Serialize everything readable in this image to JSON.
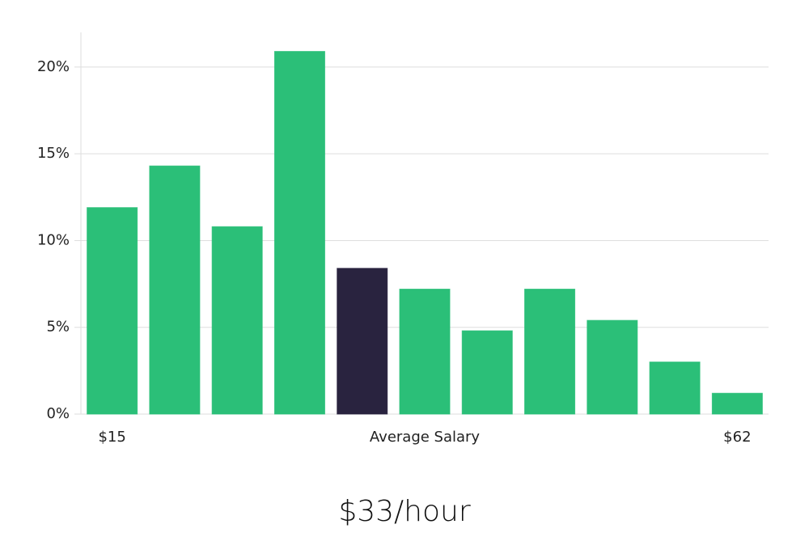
{
  "chart_data": {
    "type": "bar",
    "categories": [
      "$15",
      null,
      null,
      null,
      null,
      null,
      null,
      null,
      null,
      null,
      "$62"
    ],
    "x_label": "Average Salary",
    "values": [
      11.9,
      14.3,
      10.8,
      20.9,
      8.4,
      7.2,
      4.8,
      7.2,
      5.4,
      3.0,
      1.2
    ],
    "colors": [
      "#2bbf78",
      "#2bbf78",
      "#2bbf78",
      "#2bbf78",
      "#29233f",
      "#2bbf78",
      "#2bbf78",
      "#2bbf78",
      "#2bbf78",
      "#2bbf78",
      "#2bbf78"
    ],
    "ylim": [
      0,
      22
    ],
    "yticks": [
      {
        "value": 0,
        "label": "0%"
      },
      {
        "value": 5,
        "label": "5%"
      },
      {
        "value": 10,
        "label": "10%"
      },
      {
        "value": 15,
        "label": "15%"
      },
      {
        "value": 20,
        "label": "20%"
      }
    ],
    "grid": true,
    "footer": "$33/hour"
  }
}
